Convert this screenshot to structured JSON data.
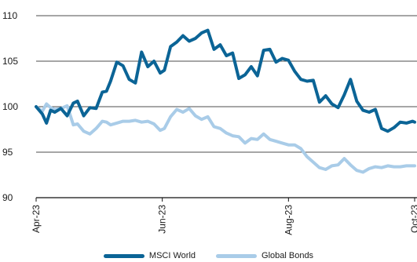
{
  "chart_data": {
    "type": "line",
    "title": "",
    "xlabel": "",
    "ylabel": "",
    "ylim": [
      90,
      110
    ],
    "yticks": [
      90,
      95,
      100,
      105,
      110
    ],
    "xlim": [
      "2023-04-01",
      "2023-10-01"
    ],
    "xticks": [
      "Apr-23",
      "Jun-23",
      "Aug-23",
      "Oct-23"
    ],
    "xtick_dates": [
      "2023-04-01",
      "2023-06-01",
      "2023-08-01",
      "2023-10-01"
    ],
    "grid": "horizontal",
    "legend_position": "bottom",
    "series": [
      {
        "name": "MSCI World",
        "color": "#0b6496",
        "x": [
          "2023-04-01",
          "2023-04-04",
          "2023-04-06",
          "2023-04-08",
          "2023-04-10",
          "2023-04-13",
          "2023-04-16",
          "2023-04-19",
          "2023-04-21",
          "2023-04-24",
          "2023-04-27",
          "2023-04-30",
          "2023-05-03",
          "2023-05-05",
          "2023-05-07",
          "2023-05-10",
          "2023-05-13",
          "2023-05-16",
          "2023-05-19",
          "2023-05-22",
          "2023-05-25",
          "2023-05-28",
          "2023-05-31",
          "2023-06-02",
          "2023-06-05",
          "2023-06-08",
          "2023-06-11",
          "2023-06-14",
          "2023-06-17",
          "2023-06-20",
          "2023-06-23",
          "2023-06-26",
          "2023-06-29",
          "2023-07-02",
          "2023-07-05",
          "2023-07-08",
          "2023-07-11",
          "2023-07-14",
          "2023-07-17",
          "2023-07-20",
          "2023-07-23",
          "2023-07-26",
          "2023-07-29",
          "2023-08-01",
          "2023-08-04",
          "2023-08-07",
          "2023-08-10",
          "2023-08-13",
          "2023-08-16",
          "2023-08-19",
          "2023-08-22",
          "2023-08-25",
          "2023-08-28",
          "2023-08-31",
          "2023-09-03",
          "2023-09-06",
          "2023-09-09",
          "2023-09-12",
          "2023-09-15",
          "2023-09-18",
          "2023-09-21",
          "2023-09-24",
          "2023-09-27",
          "2023-09-30",
          "2023-10-01"
        ],
        "values": [
          100.0,
          99.2,
          98.2,
          99.6,
          99.4,
          99.8,
          99.0,
          100.4,
          100.6,
          99.0,
          99.9,
          99.8,
          101.6,
          101.7,
          102.8,
          104.9,
          104.5,
          103.0,
          102.6,
          106.0,
          104.4,
          105.0,
          103.7,
          104.0,
          106.6,
          107.1,
          107.8,
          107.2,
          107.5,
          108.1,
          108.4,
          106.3,
          106.8,
          105.6,
          105.9,
          103.1,
          103.5,
          104.4,
          103.4,
          106.2,
          106.3,
          104.9,
          105.3,
          105.1,
          103.9,
          103.0,
          102.8,
          102.9,
          100.5,
          101.2,
          100.3,
          99.9,
          101.3,
          103.0,
          100.6,
          99.6,
          99.4,
          99.7,
          97.6,
          97.3,
          97.7,
          98.3,
          98.2,
          98.4,
          98.3
        ]
      },
      {
        "name": "Global Bonds",
        "color": "#a9cce8",
        "x": [
          "2023-04-01",
          "2023-04-04",
          "2023-04-06",
          "2023-04-08",
          "2023-04-10",
          "2023-04-13",
          "2023-04-16",
          "2023-04-19",
          "2023-04-21",
          "2023-04-24",
          "2023-04-27",
          "2023-04-30",
          "2023-05-03",
          "2023-05-05",
          "2023-05-07",
          "2023-05-10",
          "2023-05-13",
          "2023-05-16",
          "2023-05-19",
          "2023-05-22",
          "2023-05-25",
          "2023-05-28",
          "2023-05-31",
          "2023-06-02",
          "2023-06-05",
          "2023-06-08",
          "2023-06-11",
          "2023-06-14",
          "2023-06-17",
          "2023-06-20",
          "2023-06-23",
          "2023-06-26",
          "2023-06-29",
          "2023-07-02",
          "2023-07-05",
          "2023-07-08",
          "2023-07-11",
          "2023-07-14",
          "2023-07-17",
          "2023-07-20",
          "2023-07-23",
          "2023-07-26",
          "2023-07-29",
          "2023-08-01",
          "2023-08-04",
          "2023-08-07",
          "2023-08-10",
          "2023-08-13",
          "2023-08-16",
          "2023-08-19",
          "2023-08-22",
          "2023-08-25",
          "2023-08-28",
          "2023-08-31",
          "2023-09-03",
          "2023-09-06",
          "2023-09-09",
          "2023-09-12",
          "2023-09-15",
          "2023-09-18",
          "2023-09-21",
          "2023-09-24",
          "2023-09-27",
          "2023-09-30",
          "2023-10-01"
        ],
        "values": [
          100.0,
          99.5,
          100.3,
          99.9,
          99.7,
          99.8,
          100.1,
          98.0,
          98.1,
          97.3,
          97.0,
          97.6,
          98.4,
          98.3,
          98.0,
          98.2,
          98.4,
          98.4,
          98.5,
          98.3,
          98.4,
          98.1,
          97.4,
          97.6,
          98.9,
          99.7,
          99.4,
          99.8,
          99.0,
          98.6,
          98.9,
          97.8,
          97.6,
          97.1,
          96.8,
          96.7,
          96.0,
          96.5,
          96.4,
          97.0,
          96.4,
          96.2,
          96.0,
          95.8,
          95.8,
          95.4,
          94.5,
          93.9,
          93.3,
          93.1,
          93.5,
          93.6,
          94.3,
          93.6,
          93.0,
          92.8,
          93.2,
          93.4,
          93.3,
          93.5,
          93.4,
          93.4,
          93.5,
          93.5,
          93.5
        ]
      }
    ]
  }
}
